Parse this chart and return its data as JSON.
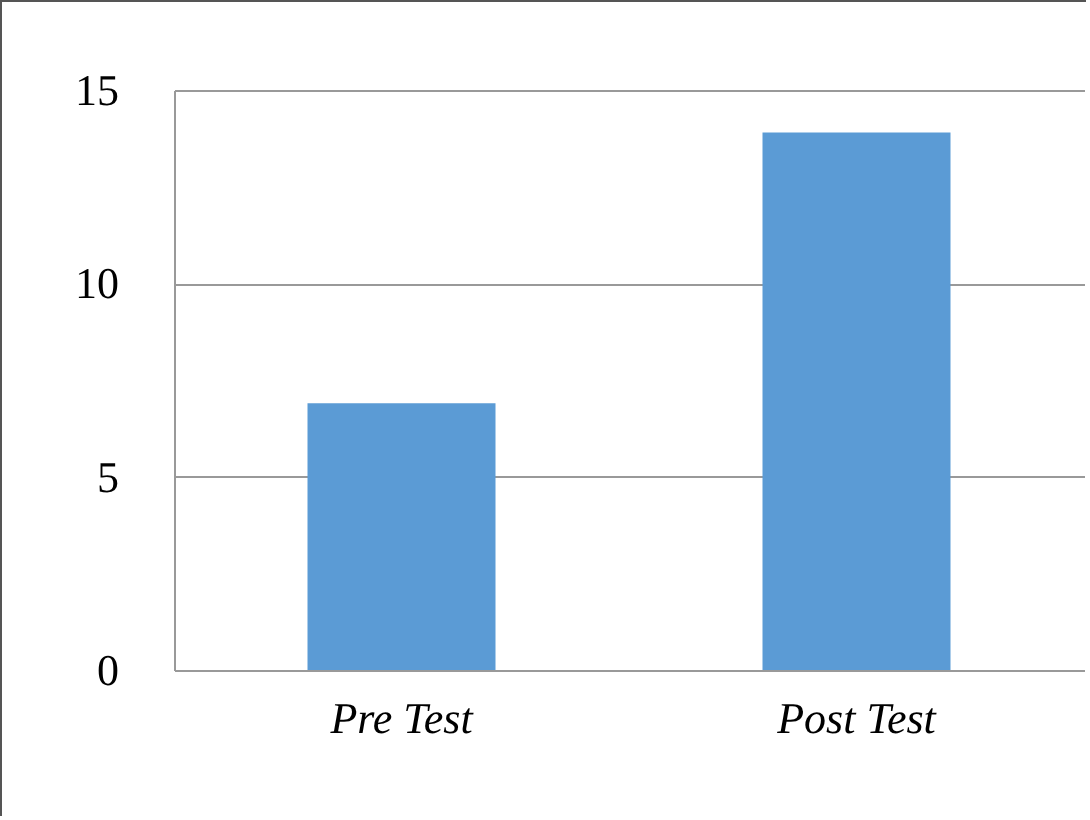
{
  "chart_data": {
    "type": "bar",
    "categories": [
      "Pre Test",
      "Post Test"
    ],
    "series": [
      {
        "color": "#5b9bd5",
        "values": [
          6.9,
          13.9
        ]
      }
    ],
    "ylim": [
      0,
      15
    ],
    "yticks": [
      0,
      5,
      10,
      15
    ],
    "grid": "y"
  }
}
